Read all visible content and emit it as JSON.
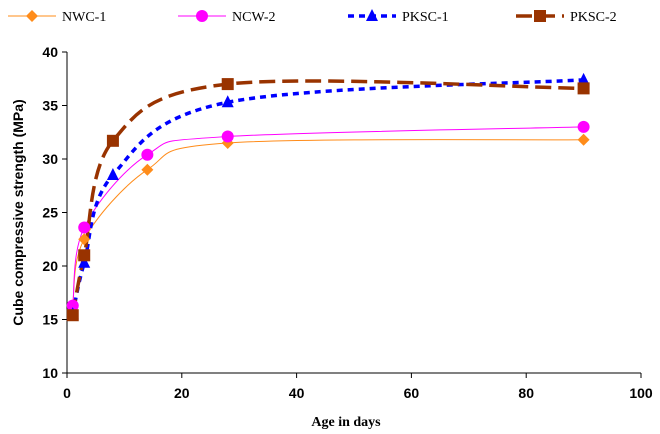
{
  "chart_data": {
    "type": "line",
    "title": "",
    "xlabel": "Age in days",
    "ylabel": "Cube compressive strength (MPa)",
    "xlim": [
      0,
      100
    ],
    "ylim": [
      10,
      40
    ],
    "xticks": [
      0,
      20,
      40,
      60,
      80,
      100
    ],
    "yticks": [
      10,
      15,
      20,
      25,
      30,
      35,
      40
    ],
    "grid": false,
    "legend_position": "top",
    "series": [
      {
        "name": "NWC-1",
        "color": "#FF8C1A",
        "marker": "diamond",
        "line_style": "solid-thin",
        "x": [
          1,
          3,
          14,
          28,
          90
        ],
        "y": [
          16.3,
          22.5,
          29.0,
          31.5,
          31.8
        ]
      },
      {
        "name": "NCW-2",
        "color": "#FF00FF",
        "marker": "circle",
        "line_style": "solid-thin",
        "x": [
          1,
          3,
          14,
          28,
          90
        ],
        "y": [
          16.3,
          23.6,
          30.4,
          32.1,
          33.0
        ]
      },
      {
        "name": "PKSC-1",
        "color": "#0000FF",
        "marker": "triangle",
        "line_style": "dotted-thick",
        "x": [
          1,
          3,
          8,
          28,
          90
        ],
        "y": [
          15.5,
          20.3,
          28.5,
          35.3,
          37.4
        ]
      },
      {
        "name": "PKSC-2",
        "color": "#993300",
        "marker": "square",
        "line_style": "dashed-thick",
        "x": [
          1,
          3,
          8,
          28,
          90
        ],
        "y": [
          15.4,
          21.0,
          31.7,
          37.0,
          36.6
        ]
      }
    ]
  }
}
